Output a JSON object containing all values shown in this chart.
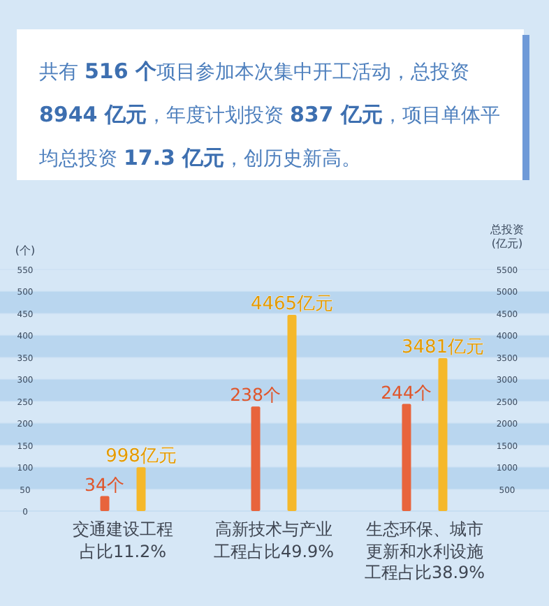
{
  "chart_data": {
    "type": "bar",
    "title": "共有 **516 个**项目参加本次集中开工活动，总投资 **8944 亿元**，年度计划投资 **837 亿元**，项目单体平均总投资 **17.3 亿元**，创历史新高。",
    "ylabel": "(个)",
    "y2label": "总投资(亿元)",
    "categories": [
      "交通建设工程占比11.2%",
      "高新技术与产业工程占比49.9%",
      "生态环保、城市更新和水利设施工程占比38.9%"
    ],
    "series": [
      {
        "color": "#e8643c",
        "values": [
          34,
          238,
          244
        ],
        "value_labels": [
          "34个",
          "238个",
          "244个"
        ]
      },
      {
        "color": "#f5b82a",
        "axis": "y2",
        "values": [
          998,
          4465,
          3481
        ],
        "value_labels": [
          "998亿元",
          "4465亿元",
          "3481亿元"
        ]
      }
    ],
    "ylim": [
      0,
      550
    ],
    "yticks": [
      0,
      50,
      100,
      150,
      200,
      250,
      300,
      350,
      400,
      450,
      500,
      550
    ],
    "y2lim": [
      0,
      5500
    ],
    "y2ticks": [
      500,
      1000,
      1500,
      2000,
      2500,
      3000,
      3500,
      4000,
      4500,
      5000,
      5500
    ],
    "grid": "y"
  }
}
